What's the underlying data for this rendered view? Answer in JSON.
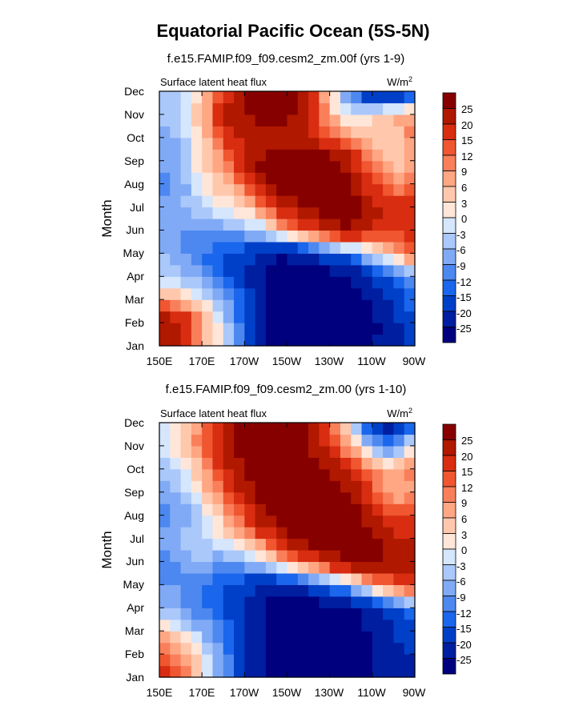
{
  "figure": {
    "title": "Equatorial Pacific Ocean (5S-5N)"
  },
  "chart_data": [
    {
      "type": "heatmap",
      "subtitle": "f.e15.FAMIP.f09_f09.cesm2_zm.00f (yrs 1-9)",
      "left_label": "Surface latent heat flux",
      "units_label": "W/m",
      "units_power": "2",
      "xlabel": "",
      "ylabel": "Month",
      "x_ticks": [
        "150E",
        "170E",
        "170W",
        "150W",
        "130W",
        "110W",
        "90W"
      ],
      "y_ticks": [
        "Jan",
        "Feb",
        "Mar",
        "Apr",
        "May",
        "Jun",
        "Jul",
        "Aug",
        "Sep",
        "Oct",
        "Nov",
        "Dec"
      ],
      "x_range_deg": [
        150,
        270
      ],
      "colorbar_levels": [
        "25",
        "20",
        "15",
        "12",
        "9",
        "6",
        "3",
        "0",
        "-3",
        "-6",
        "-9",
        "-12",
        "-15",
        "-20",
        "-25"
      ],
      "grid_x_lon": [
        150,
        160,
        170,
        180,
        190,
        200,
        210,
        220,
        230,
        240,
        250,
        260,
        270
      ],
      "grid_rows_month": [
        "Jan",
        "Feb",
        "Mar",
        "Apr",
        "May",
        "Jun",
        "Jul",
        "Aug",
        "Sep",
        "Oct",
        "Nov",
        "Dec"
      ],
      "values": [
        [
          22,
          20,
          6,
          0,
          -15,
          -25,
          -28,
          -28,
          -28,
          -27,
          -25,
          -22,
          -18
        ],
        [
          25,
          22,
          9,
          -3,
          -15,
          -26,
          -28,
          -28,
          -28,
          -28,
          -27,
          -22,
          -18
        ],
        [
          9,
          6,
          0,
          -8,
          -15,
          -24,
          -28,
          -28,
          -28,
          -27,
          -24,
          -18,
          -12
        ],
        [
          -3,
          -6,
          -9,
          -15,
          -22,
          -26,
          -28,
          -28,
          -28,
          -26,
          -20,
          -15,
          -10
        ],
        [
          -6,
          -9,
          -12,
          -15,
          -18,
          -22,
          -25,
          -20,
          -15,
          -10,
          -3,
          6,
          15
        ],
        [
          -9,
          -9,
          -9,
          -9,
          -6,
          -3,
          9,
          15,
          22,
          25,
          20,
          15,
          18
        ],
        [
          -6,
          -6,
          -3,
          0,
          3,
          12,
          20,
          26,
          28,
          28,
          22,
          18,
          20
        ],
        [
          -12,
          -9,
          0,
          6,
          12,
          26,
          28,
          28,
          28,
          25,
          15,
          9,
          12
        ],
        [
          -9,
          -6,
          3,
          9,
          22,
          28,
          28,
          28,
          28,
          22,
          9,
          3,
          6
        ],
        [
          -9,
          -6,
          3,
          15,
          20,
          18,
          20,
          22,
          15,
          9,
          3,
          3,
          12
        ],
        [
          -6,
          -3,
          6,
          20,
          25,
          28,
          28,
          20,
          6,
          -3,
          3,
          6,
          9
        ],
        [
          -6,
          -3,
          3,
          15,
          25,
          28,
          28,
          25,
          3,
          -12,
          -25,
          -27,
          -18
        ]
      ]
    },
    {
      "type": "heatmap",
      "subtitle": "f.e15.FAMIP.f09_f09.cesm2_zm.00 (yrs 1-10)",
      "left_label": "Surface latent heat flux",
      "units_label": "W/m",
      "units_power": "2",
      "xlabel": "",
      "ylabel": "Month",
      "x_ticks": [
        "150E",
        "170E",
        "170W",
        "150W",
        "130W",
        "110W",
        "90W"
      ],
      "y_ticks": [
        "Jan",
        "Feb",
        "Mar",
        "Apr",
        "May",
        "Jun",
        "Jul",
        "Aug",
        "Sep",
        "Oct",
        "Nov",
        "Dec"
      ],
      "x_range_deg": [
        150,
        270
      ],
      "colorbar_levels": [
        "25",
        "20",
        "15",
        "12",
        "9",
        "6",
        "3",
        "0",
        "-3",
        "-6",
        "-9",
        "-12",
        "-15",
        "-20",
        "-25"
      ],
      "grid_x_lon": [
        150,
        160,
        170,
        180,
        190,
        200,
        210,
        220,
        230,
        240,
        250,
        260,
        270
      ],
      "grid_rows_month": [
        "Jan",
        "Feb",
        "Mar",
        "Apr",
        "May",
        "Jun",
        "Jul",
        "Aug",
        "Sep",
        "Oct",
        "Nov",
        "Dec"
      ],
      "values": [
        [
          20,
          12,
          3,
          -9,
          -20,
          -26,
          -28,
          -28,
          -28,
          -27,
          -25,
          -22,
          -20
        ],
        [
          15,
          9,
          0,
          -9,
          -20,
          -26,
          -28,
          -28,
          -28,
          -28,
          -26,
          -22,
          -20
        ],
        [
          6,
          0,
          -6,
          -12,
          -20,
          -26,
          -28,
          -28,
          -28,
          -27,
          -25,
          -20,
          -15
        ],
        [
          -6,
          -9,
          -12,
          -15,
          -22,
          -26,
          -28,
          -28,
          -28,
          -26,
          -22,
          -15,
          -12
        ],
        [
          -9,
          -9,
          -12,
          -15,
          -18,
          -22,
          -22,
          -18,
          -12,
          -6,
          6,
          12,
          20
        ],
        [
          -12,
          -9,
          -6,
          -9,
          -6,
          -3,
          9,
          15,
          22,
          28,
          28,
          22,
          25
        ],
        [
          -9,
          -6,
          -3,
          0,
          6,
          15,
          25,
          28,
          28,
          28,
          28,
          20,
          22
        ],
        [
          -12,
          -9,
          -3,
          6,
          15,
          25,
          28,
          28,
          28,
          28,
          20,
          15,
          15
        ],
        [
          -9,
          -6,
          3,
          12,
          22,
          28,
          28,
          28,
          28,
          25,
          15,
          6,
          9
        ],
        [
          -6,
          -3,
          6,
          18,
          25,
          28,
          25,
          28,
          25,
          18,
          9,
          6,
          12
        ],
        [
          -3,
          3,
          12,
          22,
          28,
          28,
          28,
          25,
          18,
          6,
          -6,
          -12,
          3
        ],
        [
          -3,
          3,
          9,
          20,
          28,
          28,
          28,
          25,
          15,
          -3,
          -20,
          -25,
          -15
        ]
      ]
    }
  ],
  "colors": {
    "palette": [
      "#00007f",
      "#001ea0",
      "#0040c8",
      "#1a66ec",
      "#4d88f0",
      "#80aaf5",
      "#aac8fa",
      "#d5e6fd",
      "#ffe6d8",
      "#ffc8ad",
      "#ffa683",
      "#f97f5a",
      "#f05630",
      "#d82d10",
      "#b01800",
      "#870000"
    ]
  }
}
